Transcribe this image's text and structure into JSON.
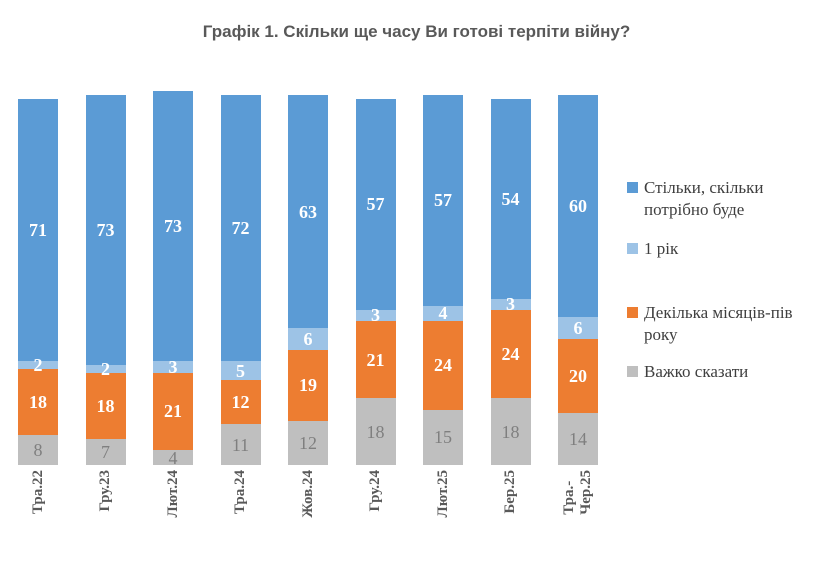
{
  "title": "Графік 1. Скільки ще часу Ви готові терпіти війну?",
  "chart_data": {
    "type": "bar",
    "subtype": "stacked-column",
    "title": "Графік 1. Скільки ще часу Ви готові терпіти війну?",
    "categories": [
      "Тра.22",
      "Гру.23",
      "Лют.24",
      "Тра.24",
      "Жов.24",
      "Гру.24",
      "Лют.25",
      "Бер.25",
      "Тра.-\nЧер.25"
    ],
    "series": [
      {
        "name": "Стільки, скільки потрібно буде",
        "color": "#5B9BD5",
        "label_color": "#FFFFFF",
        "values": [
          71,
          73,
          73,
          72,
          63,
          57,
          57,
          54,
          60
        ]
      },
      {
        "name": "1 рік",
        "color": "#9DC3E6",
        "label_color": "#FFFFFF",
        "values": [
          2,
          2,
          3,
          5,
          6,
          3,
          4,
          3,
          6
        ]
      },
      {
        "name": "Декілька місяців-пів року",
        "color": "#ED7D31",
        "label_color": "#FFFFFF",
        "values": [
          18,
          18,
          21,
          12,
          19,
          21,
          24,
          24,
          20
        ]
      },
      {
        "name": "Важко сказати",
        "color": "#BFBFBF",
        "label_color": "#7F7F7F",
        "values": [
          8,
          7,
          4,
          11,
          12,
          18,
          15,
          18,
          14
        ]
      }
    ],
    "stack_order_bottom_to_top": [
      3,
      2,
      1,
      0
    ],
    "legend_position": "right",
    "grid": false,
    "y_axis_visible": false,
    "x_labels_rotated_degrees": 90,
    "ylim": [
      0,
      101
    ]
  },
  "legend": {
    "items": [
      {
        "label": "Стільки, скільки потрібно буде",
        "color": "#5B9BD5"
      },
      {
        "label": "1 рік",
        "color": "#9DC3E6"
      },
      {
        "label": "Декілька місяців-пів року",
        "color": "#ED7D31"
      },
      {
        "label": "Важко сказати",
        "color": "#BFBFBF"
      }
    ]
  }
}
